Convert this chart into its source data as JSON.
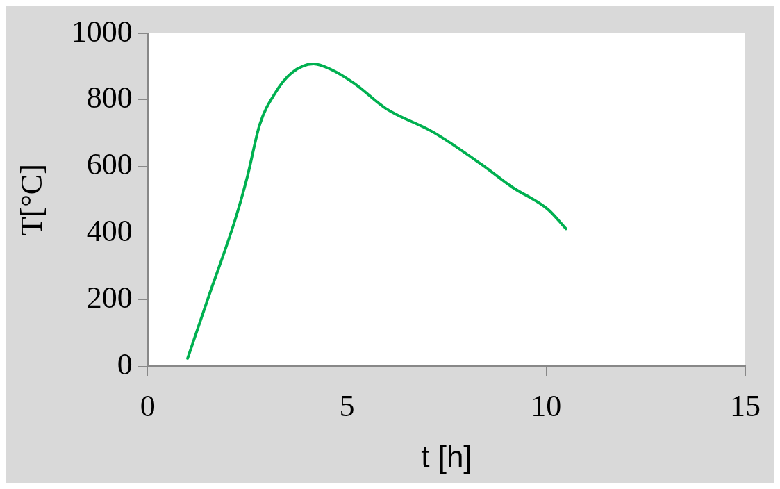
{
  "chart_data": {
    "type": "line",
    "xlabel": "t [h]",
    "ylabel": "T[°C]",
    "x": [
      1,
      1.5,
      2.2,
      2.5,
      2.81,
      3.2,
      3.6,
      4.16,
      4.59,
      5.19,
      5.98,
      7.17,
      8.36,
      9.15,
      10.04,
      10.5
    ],
    "series": [
      {
        "color": "#00b050",
        "values": [
          24,
          200,
          443,
          570,
          726,
          821,
          880,
          908,
          892,
          849,
          774,
          703,
          608,
          538,
          472,
          413
        ]
      }
    ],
    "xlim": [
      0,
      15
    ],
    "xticks": [
      0,
      5,
      10,
      15
    ],
    "ylim": [
      0,
      1000
    ],
    "yticks": [
      0,
      200,
      400,
      600,
      800,
      1000
    ],
    "grid": false,
    "legend": false,
    "marker": "none",
    "line_style": "solid"
  }
}
